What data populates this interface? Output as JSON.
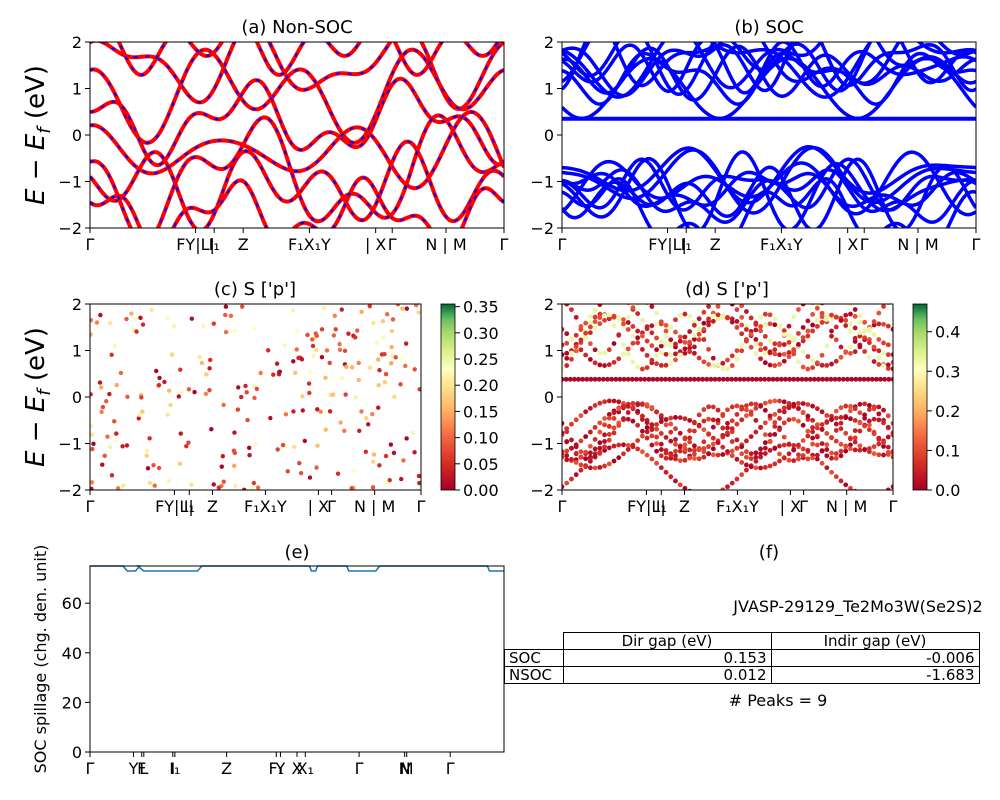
{
  "panels": {
    "a": {
      "title": "(a) Non-SOC",
      "ylabel": "E − E_f (eV)",
      "yticks": [
        "2",
        "1",
        "0",
        "−1",
        "−2"
      ]
    },
    "b": {
      "title": "(b) SOC",
      "yticks": [
        "2",
        "1",
        "0",
        "−1",
        "−2"
      ]
    },
    "c": {
      "title": "(c)  S ['p']",
      "ylabel": "E − E_f (eV)",
      "yticks": [
        "2",
        "1",
        "0",
        "−1",
        "−2"
      ],
      "colorbar_ticks": [
        "0.35",
        "0.30",
        "0.25",
        "0.20",
        "0.15",
        "0.10",
        "0.05",
        "0.00"
      ]
    },
    "d": {
      "title": "(d) S ['p']",
      "yticks": [
        "2",
        "1",
        "0",
        "−1",
        "−2"
      ],
      "colorbar_ticks": [
        "0.4",
        "0.3",
        "0.2",
        "0.1",
        "0.0"
      ]
    },
    "e": {
      "title": "(e)",
      "ylabel": "SOC spillage (chg. den. unit)",
      "yticks": [
        "60",
        "40",
        "20",
        "0"
      ]
    },
    "f": {
      "title": "(f)",
      "material": "JVASP-29129_Te2Mo3W(Se2S)2",
      "peaks": "# Peaks = 9"
    }
  },
  "kpath_labels": [
    "Γ",
    "F",
    "Y",
    "L",
    "I",
    "I₁",
    "Z",
    "F₁",
    "X₁",
    "Y",
    "X",
    "Γ",
    "N | M",
    "Γ"
  ],
  "kpath_labels_ab": [
    "Γ",
    "FY|L|",
    "I₁",
    "Z",
    "F₁X₁Y",
    "| X",
    "Γ",
    "N | M",
    "Γ"
  ],
  "kpath_labels_e": [
    "Γ",
    "Y",
    "F",
    "L",
    "I",
    "I₁",
    "Z",
    "F₁",
    "Y",
    "X",
    "X₁",
    "Γ",
    "N",
    "M",
    "Γ"
  ],
  "table": {
    "headers": [
      "",
      "Dir gap (eV)",
      "Indir gap (eV)"
    ],
    "rows": [
      {
        "label": "SOC",
        "dir": "0.153",
        "indir": "-0.006"
      },
      {
        "label": "NSOC",
        "dir": "0.012",
        "indir": "-1.683"
      }
    ]
  },
  "colors": {
    "nonsoc_red": "#ff0000",
    "nonsoc_blue": "#0000ff",
    "soc_blue": "#0000ff",
    "spillage": "#1f77b4"
  },
  "chart_data": [
    {
      "type": "line",
      "title": "(a) Non-SOC",
      "ylabel": "E − E_f (eV)",
      "ylim": [
        -2,
        2
      ],
      "x_ticks": [
        "Γ",
        "FY|L|",
        "I₁",
        "Z",
        "F₁X₁Y",
        "| X",
        "Γ",
        "N | M",
        "Γ"
      ],
      "series": [],
      "note_colors": [
        "red solid",
        "blue dashed"
      ]
    },
    {
      "type": "line",
      "title": "(b) SOC",
      "ylim": [
        -2,
        2
      ],
      "x_ticks": [
        "Γ",
        "FY|L|",
        "I₁",
        "Z",
        "F₁X₁Y",
        "| X",
        "Γ",
        "N | M",
        "Γ"
      ],
      "flat_band_y": 0.35
    },
    {
      "type": "scatter",
      "title": "(c)  S ['p']",
      "ylim": [
        -2,
        2
      ],
      "colorbar_range": [
        0,
        0.35
      ]
    },
    {
      "type": "scatter",
      "title": "(d) S ['p']",
      "ylim": [
        -2,
        2
      ],
      "colorbar_range": [
        0,
        0.47
      ],
      "flat_band_y": 0.38
    },
    {
      "type": "line",
      "title": "(e)",
      "ylabel": "SOC spillage (chg. den. unit)",
      "ylim": [
        0,
        75
      ],
      "x_ticks": [
        "Γ",
        "Y",
        "F",
        "L",
        "I",
        "I₁",
        "Z",
        "F₁",
        "Y",
        "X",
        "X₁",
        "Γ",
        "N",
        "M",
        "Γ"
      ],
      "series": [
        {
          "x": [
            0,
            0.08,
            0.09,
            0.11,
            0.12,
            0.115,
            0.13,
            0.16,
            0.17,
            0.18,
            0.19,
            0.26,
            0.27,
            0.53,
            0.535,
            0.545,
            0.55,
            0.62,
            0.625,
            0.69,
            0.7,
            0.96,
            0.965,
            1.0
          ],
          "y": [
            75,
            75,
            73,
            73,
            75,
            75,
            73,
            73,
            73,
            73,
            73,
            73,
            75,
            75,
            73,
            73,
            75,
            75,
            73,
            73,
            75,
            75,
            73,
            73
          ]
        }
      ]
    }
  ]
}
